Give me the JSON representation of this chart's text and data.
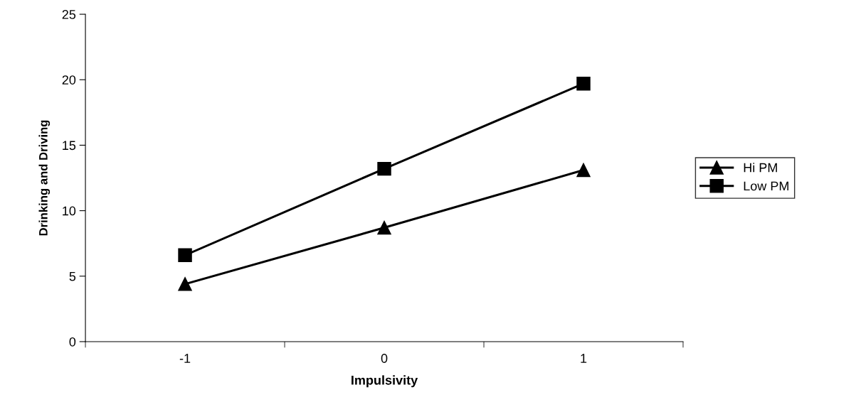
{
  "chart_data": {
    "type": "line",
    "xlabel": "Impulsivity",
    "ylabel": "Drinking and Driving",
    "categories": [
      "-1",
      "0",
      "1"
    ],
    "series": [
      {
        "name": "Hi PM",
        "color": "#000000",
        "marker": "triangle",
        "values": [
          4.4,
          8.7,
          13.1
        ]
      },
      {
        "name": "Low PM",
        "color": "#000000",
        "marker": "square",
        "values": [
          6.6,
          13.2,
          19.7
        ]
      }
    ],
    "ylim": [
      0,
      25
    ],
    "yticks": [
      0,
      5,
      10,
      15,
      20,
      25
    ],
    "grid": false,
    "legend": "right",
    "line_style": "solid"
  }
}
